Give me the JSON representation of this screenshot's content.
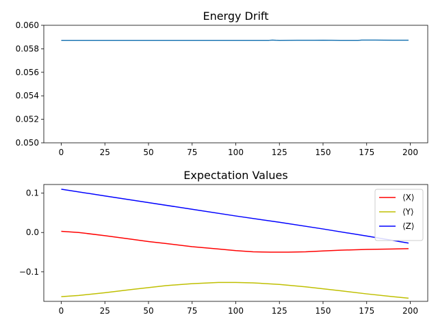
{
  "chart_data": [
    {
      "type": "line",
      "title": "Energy Drift",
      "xlabel": "",
      "ylabel": "",
      "xlim": [
        -10,
        210
      ],
      "ylim": [
        0.05,
        0.06
      ],
      "xticks": [
        0,
        25,
        50,
        75,
        100,
        125,
        150,
        175,
        200
      ],
      "xtick_labels": [
        "0",
        "25",
        "50",
        "75",
        "100",
        "125",
        "150",
        "175",
        "200"
      ],
      "yticks": [
        0.05,
        0.052,
        0.054,
        0.056,
        0.058,
        0.06
      ],
      "ytick_labels": [
        "0.050",
        "0.052",
        "0.054",
        "0.056",
        "0.058",
        "0.060"
      ],
      "grid": false,
      "legend": null,
      "series": [
        {
          "color": "#1f77b4",
          "x": [
            0,
            25,
            50,
            75,
            100,
            115,
            119,
            121,
            123,
            125,
            135,
            145,
            150,
            155,
            160,
            170,
            171,
            172,
            180,
            190,
            199
          ],
          "y": [
            0.05871,
            0.05871,
            0.05871,
            0.05871,
            0.05871,
            0.05871,
            0.05871,
            0.05874,
            0.05872,
            0.05871,
            0.05872,
            0.05872,
            0.05873,
            0.05872,
            0.05871,
            0.05871,
            0.05872,
            0.05874,
            0.05874,
            0.05873,
            0.05873
          ]
        }
      ]
    },
    {
      "type": "line",
      "title": "Expectation Values",
      "xlabel": "",
      "ylabel": "",
      "xlim": [
        -10,
        210
      ],
      "ylim": [
        -0.175,
        0.122
      ],
      "xticks": [
        0,
        25,
        50,
        75,
        100,
        125,
        150,
        175,
        200
      ],
      "xtick_labels": [
        "0",
        "25",
        "50",
        "75",
        "100",
        "125",
        "150",
        "175",
        "200"
      ],
      "yticks": [
        -0.1,
        0.0,
        0.1
      ],
      "ytick_labels": [
        "−0.1",
        "0.0",
        "0.1"
      ],
      "grid": false,
      "legend": "top-right",
      "series": [
        {
          "name": "⟨X⟩",
          "color": "#ff0000",
          "x": [
            0,
            10,
            25,
            40,
            50,
            60,
            75,
            90,
            100,
            110,
            120,
            130,
            140,
            150,
            160,
            175,
            190,
            199
          ],
          "y": [
            0.003,
            0.0,
            -0.008,
            -0.017,
            -0.023,
            -0.028,
            -0.036,
            -0.042,
            -0.046,
            -0.049,
            -0.05,
            -0.05,
            -0.049,
            -0.047,
            -0.045,
            -0.043,
            -0.042,
            -0.041
          ]
        },
        {
          "name": "⟨Y⟩",
          "color": "#bfbf00",
          "x": [
            0,
            10,
            25,
            40,
            50,
            60,
            75,
            90,
            100,
            110,
            125,
            140,
            150,
            160,
            175,
            190,
            199
          ],
          "y": [
            -0.163,
            -0.16,
            -0.153,
            -0.145,
            -0.14,
            -0.135,
            -0.13,
            -0.127,
            -0.127,
            -0.128,
            -0.132,
            -0.138,
            -0.143,
            -0.148,
            -0.156,
            -0.163,
            -0.167
          ]
        },
        {
          "name": "⟨Z⟩",
          "color": "#0000ff",
          "x": [
            0,
            25,
            50,
            75,
            100,
            125,
            150,
            175,
            199
          ],
          "y": [
            0.11,
            0.093,
            0.076,
            0.059,
            0.042,
            0.026,
            0.009,
            -0.009,
            -0.027
          ]
        }
      ]
    }
  ]
}
